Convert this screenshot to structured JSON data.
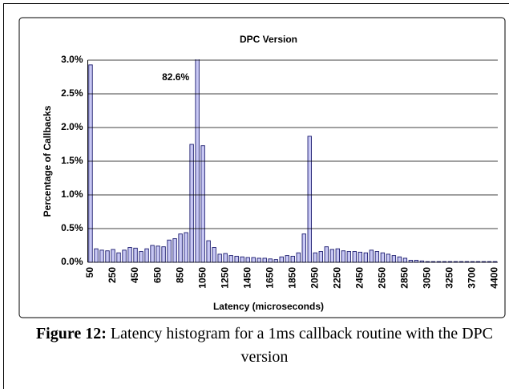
{
  "chart_data": {
    "type": "bar",
    "title": "DPC Version",
    "x_label": "Latency (microseconds)",
    "y_label": "Percentage of Callbacks",
    "categories": [
      "50",
      null,
      null,
      null,
      "250",
      null,
      null,
      null,
      "450",
      null,
      null,
      null,
      "650",
      null,
      null,
      null,
      "850",
      null,
      null,
      null,
      "1050",
      null,
      null,
      null,
      "1250",
      null,
      null,
      null,
      "1450",
      null,
      null,
      null,
      "1650",
      null,
      null,
      null,
      "1850",
      null,
      null,
      null,
      "2050",
      null,
      null,
      null,
      "2250",
      null,
      null,
      null,
      "2450",
      null,
      null,
      null,
      "2650",
      null,
      null,
      null,
      "2850",
      null,
      null,
      null,
      "3050",
      null,
      null,
      null,
      "3250",
      null,
      null,
      null,
      "3700",
      null,
      null,
      null,
      "4400"
    ],
    "values": [
      2.93,
      0.2,
      0.18,
      0.17,
      0.19,
      0.14,
      0.18,
      0.22,
      0.21,
      0.16,
      0.2,
      0.25,
      0.24,
      0.23,
      0.33,
      0.35,
      0.42,
      0.44,
      1.75,
      82.6,
      1.73,
      0.32,
      0.22,
      0.12,
      0.13,
      0.1,
      0.09,
      0.08,
      0.07,
      0.07,
      0.06,
      0.06,
      0.05,
      0.04,
      0.08,
      0.1,
      0.09,
      0.14,
      0.42,
      1.87,
      0.14,
      0.16,
      0.23,
      0.19,
      0.2,
      0.17,
      0.16,
      0.16,
      0.15,
      0.14,
      0.18,
      0.16,
      0.14,
      0.12,
      0.1,
      0.08,
      0.06,
      0.03,
      0.03,
      0.02,
      0.01,
      0.01,
      0.01,
      0.01,
      0.01,
      0.01,
      0.01,
      0.01,
      0.01,
      0.01,
      0.01,
      0.01,
      0.01
    ],
    "value_labels": [
      null,
      null,
      null,
      null,
      null,
      null,
      null,
      null,
      null,
      null,
      null,
      null,
      null,
      null,
      null,
      null,
      null,
      null,
      null,
      "82.6%",
      null,
      null,
      null,
      null,
      null,
      null,
      null,
      null,
      null,
      null,
      null,
      null,
      null,
      null,
      null,
      null,
      null,
      null,
      null,
      null,
      null,
      null,
      null,
      null,
      null,
      null,
      null,
      null,
      null,
      null,
      null,
      null,
      null,
      null,
      null,
      null,
      null,
      null,
      null,
      null,
      null,
      null,
      null,
      null,
      null,
      null,
      null,
      null,
      null,
      null,
      null,
      null,
      null
    ],
    "color": "#c8c8f4",
    "ylim": [
      0,
      3.0
    ],
    "yticks": [
      {
        "value": 0,
        "label": "0.0%"
      },
      {
        "value": 0.5,
        "label": "0.5%"
      },
      {
        "value": 1.0,
        "label": "1.0%"
      },
      {
        "value": 1.5,
        "label": "1.5%"
      },
      {
        "value": 2.0,
        "label": "2.0%"
      },
      {
        "value": 2.5,
        "label": "2.5%"
      },
      {
        "value": 3.0,
        "label": "3.0%"
      }
    ],
    "grid": true
  },
  "caption": {
    "label": "Figure 12:",
    "text": "Latency histogram for a 1ms callback routine with the DPC version"
  }
}
